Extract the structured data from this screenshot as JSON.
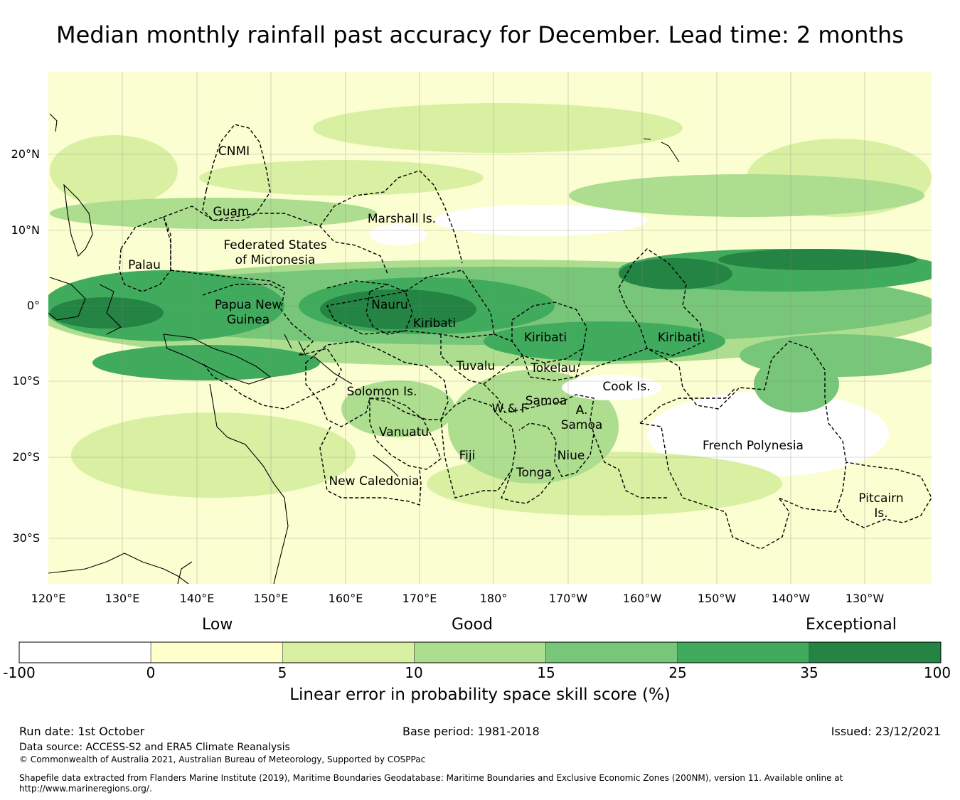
{
  "title": "Median monthly rainfall past accuracy for December. Lead time: 2 months",
  "map": {
    "lon_labels": [
      "120°E",
      "130°E",
      "140°E",
      "150°E",
      "160°E",
      "170°E",
      "180°",
      "170°W",
      "160°W",
      "150°W",
      "140°W",
      "130°W"
    ],
    "lat_labels": [
      "20°N",
      "10°N",
      "0°",
      "10°S",
      "20°S",
      "30°S"
    ],
    "regions": [
      {
        "id": "cnmi",
        "lines": [
          "CNMI"
        ]
      },
      {
        "id": "guam",
        "lines": [
          "Guam"
        ]
      },
      {
        "id": "marshall",
        "lines": [
          "Marshall Is."
        ]
      },
      {
        "id": "fsm",
        "lines": [
          "Federated States",
          "of Micronesia"
        ]
      },
      {
        "id": "palau",
        "lines": [
          "Palau"
        ]
      },
      {
        "id": "png",
        "lines": [
          "Papua New",
          "Guinea"
        ]
      },
      {
        "id": "nauru",
        "lines": [
          "Nauru"
        ]
      },
      {
        "id": "kiribati-w",
        "lines": [
          "Kiribati"
        ]
      },
      {
        "id": "kiribati-c",
        "lines": [
          "Kiribati"
        ]
      },
      {
        "id": "kiribati-e",
        "lines": [
          "Kiribati"
        ]
      },
      {
        "id": "tuvalu",
        "lines": [
          "Tuvalu"
        ]
      },
      {
        "id": "tokelau",
        "lines": [
          "Tokelau"
        ]
      },
      {
        "id": "cook",
        "lines": [
          "Cook Is."
        ]
      },
      {
        "id": "solomon",
        "lines": [
          "Solomon Is."
        ]
      },
      {
        "id": "samoa",
        "lines": [
          "Samoa"
        ]
      },
      {
        "id": "wf",
        "lines": [
          "W & F"
        ]
      },
      {
        "id": "asamoa",
        "lines": [
          "A.",
          "Samoa"
        ]
      },
      {
        "id": "vanuatu",
        "lines": [
          "Vanuatu"
        ]
      },
      {
        "id": "fiji",
        "lines": [
          "Fiji"
        ]
      },
      {
        "id": "niue",
        "lines": [
          "Niue"
        ]
      },
      {
        "id": "tonga",
        "lines": [
          "Tonga"
        ]
      },
      {
        "id": "newcal",
        "lines": [
          "New Caledonia"
        ]
      },
      {
        "id": "frpoly",
        "lines": [
          "French Polynesia"
        ]
      },
      {
        "id": "pitcairn",
        "lines": [
          "Pitcairn",
          "Is."
        ]
      }
    ]
  },
  "colorbar": {
    "category_labels": [
      "Low",
      "Good",
      "Exceptional"
    ],
    "bounds": [
      "-100",
      "0",
      "5",
      "10",
      "15",
      "25",
      "35",
      "100"
    ],
    "colors": [
      "#ffffff",
      "#ffffcc",
      "#d9f0a3",
      "#addd8e",
      "#78c679",
      "#41ab5d",
      "#238443"
    ],
    "title": "Linear error in probability space skill score (%)"
  },
  "footer": {
    "run_date": "Run date: 1st October",
    "base_period": "Base period: 1981-2018",
    "issued": "Issued: 23/12/2021",
    "data_source": "Data source: ACCESS-S2 and ERA5 Climate Reanalysis",
    "copyright": "© Commonwealth of Australia 2021, Australian Bureau of Meteorology, Supported by COSPPac",
    "shapefile": "Shapefile data extracted from Flanders Marine Institute (2019), Maritime Boundaries Geodatabase: Maritime Boundaries and Exclusive Economic Zones (200NM), version 11. Available online at http://www.marineregions.org/."
  }
}
